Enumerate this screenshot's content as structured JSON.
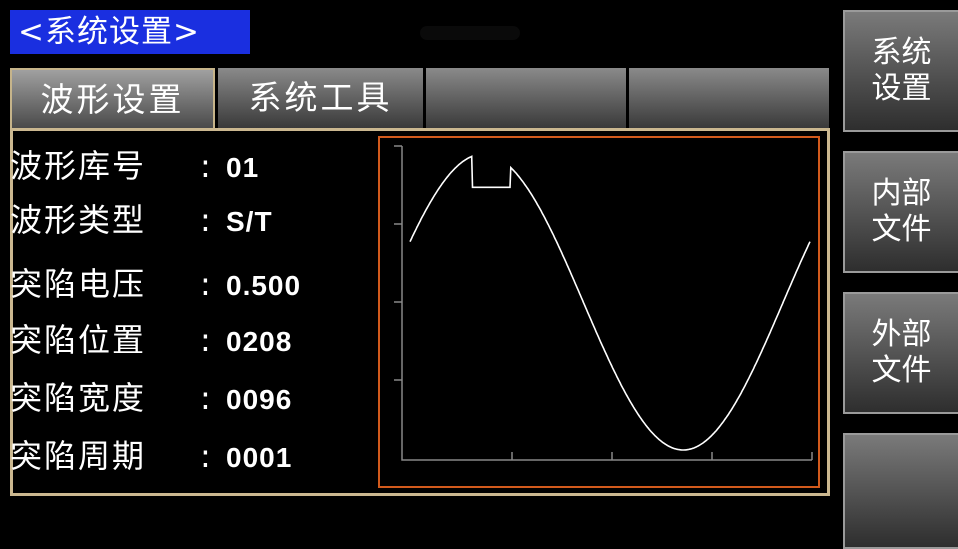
{
  "header": {
    "title": "<系统设置>"
  },
  "tabs": [
    {
      "label": "波形设置",
      "active": true
    },
    {
      "label": "系统工具",
      "active": false
    },
    {
      "label": "",
      "active": false
    },
    {
      "label": "",
      "active": false
    }
  ],
  "params": [
    {
      "label": "波形库号",
      "value": "01"
    },
    {
      "label": "波形类型",
      "value": "S/T"
    },
    {
      "label": "突陷电压",
      "value": "0.500"
    },
    {
      "label": "突陷位置",
      "value": "0208"
    },
    {
      "label": "突陷宽度",
      "value": "0096"
    },
    {
      "label": "突陷周期",
      "value": "0001"
    }
  ],
  "waveform": {
    "type": "sine",
    "sag_voltage": 0.5,
    "sag_position": 208,
    "sag_width": 96,
    "samples_per_period": 1024,
    "periods": 1,
    "line_color": "#ffffff",
    "frame_color": "#d25a1c"
  },
  "sidebar": [
    {
      "line1": "系统",
      "line2": "设置"
    },
    {
      "line1": "内部",
      "line2": "文件"
    },
    {
      "line1": "外部",
      "line2": "文件"
    },
    {
      "line1": "",
      "line2": ""
    }
  ],
  "colors": {
    "title_bg": "#1a2fe0",
    "panel_border": "#cbb890"
  }
}
